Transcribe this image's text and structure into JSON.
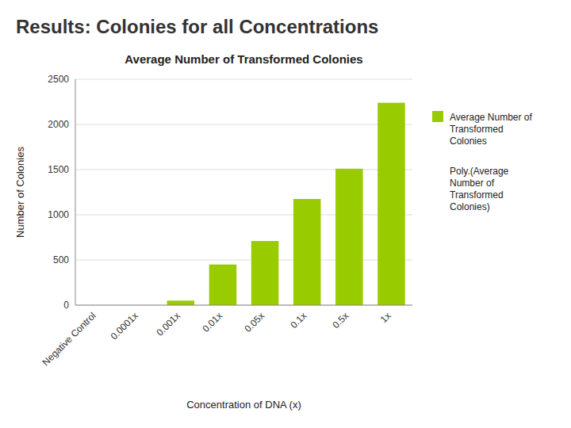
{
  "title": "Results: Colonies for all Concentrations",
  "chart_data": {
    "type": "bar",
    "title": "Average Number of Transformed Colonies",
    "xlabel": "Concentration of DNA (x)",
    "ylabel": "Number of Colonies",
    "categories": [
      "Negative Control",
      "0.0001x",
      "0.001x",
      "0.01x",
      "0.05x",
      "0.1x",
      "0.5x",
      "1x"
    ],
    "series": [
      {
        "name": "Average Number of\nTransformed\nColonies",
        "color": "#99cc00",
        "values": [
          0,
          0,
          50,
          450,
          710,
          1175,
          1510,
          2240
        ]
      }
    ],
    "annotations": [
      "Poly.(Average\nNumber of\nTransformed\nColonies)"
    ],
    "ylim": [
      0,
      2500
    ],
    "yticks": [
      0,
      500,
      1000,
      1500,
      2000,
      2500
    ],
    "grid": true,
    "legend": "right"
  }
}
